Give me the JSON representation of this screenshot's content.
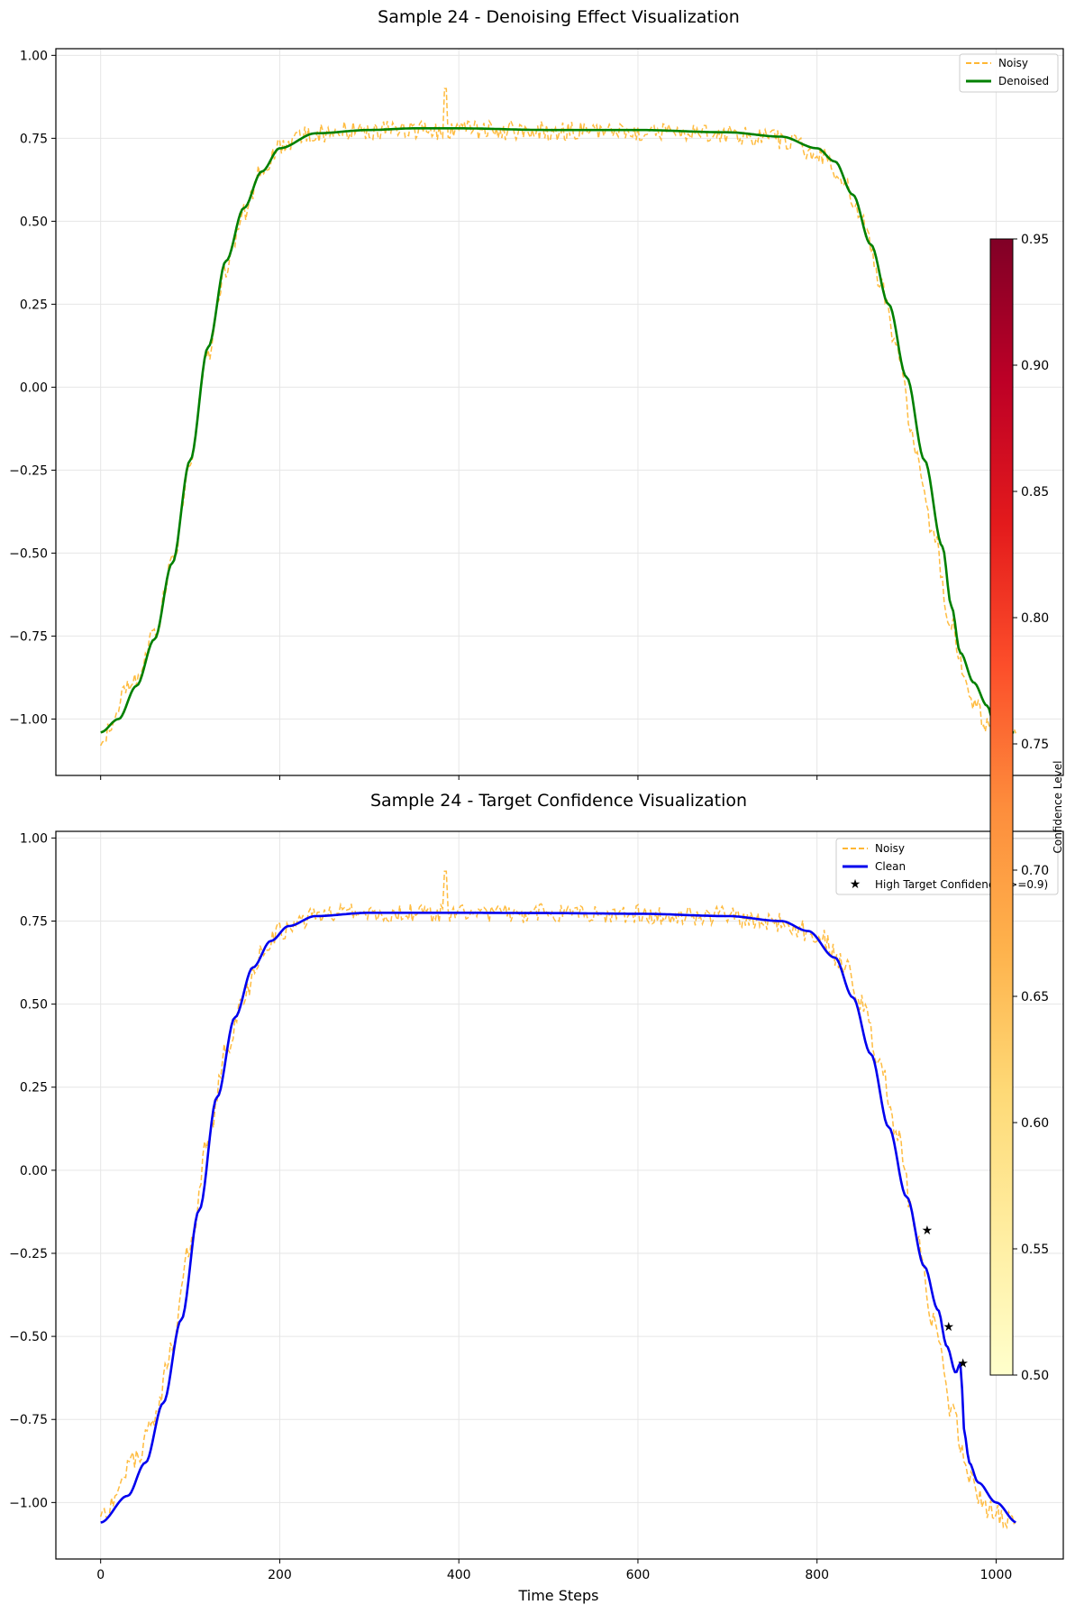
{
  "chart_data": [
    {
      "type": "line",
      "title": "Sample 24 - Denoising Effect Visualization",
      "xlabel": "",
      "ylabel": "",
      "xlim": [
        -50,
        1075
      ],
      "ylim": [
        -1.17,
        1.02
      ],
      "xticks": [
        0,
        200,
        400,
        600,
        800,
        1000
      ],
      "show_xtick_labels": false,
      "yticks": [
        -1.0,
        -0.75,
        -0.5,
        -0.25,
        0.0,
        0.25,
        0.5,
        0.75,
        1.0
      ],
      "ytick_labels": [
        "−1.00",
        "−0.75",
        "−0.50",
        "−0.25",
        "0.00",
        "0.25",
        "0.50",
        "0.75",
        "1.00"
      ],
      "grid": true,
      "legend_position": "top-right",
      "series": [
        {
          "name": "Noisy",
          "style": "dashed",
          "color": "#ffa500",
          "noisy": true,
          "x": [
            0,
            40,
            60,
            80,
            100,
            120,
            140,
            160,
            180,
            200,
            240,
            300,
            400,
            500,
            600,
            700,
            760,
            800,
            830,
            850,
            870,
            890,
            910,
            930,
            950,
            970,
            990,
            1023
          ],
          "y": [
            -1.05,
            -0.87,
            -0.75,
            -0.53,
            -0.23,
            0.1,
            0.36,
            0.53,
            0.65,
            0.72,
            0.765,
            0.775,
            0.775,
            0.772,
            0.77,
            0.765,
            0.745,
            0.71,
            0.62,
            0.5,
            0.33,
            0.1,
            -0.18,
            -0.45,
            -0.72,
            -0.93,
            -1.02,
            -1.06
          ],
          "spike": {
            "x": 385,
            "y": 0.9
          }
        },
        {
          "name": "Denoised",
          "style": "solid",
          "color": "#008000",
          "x": [
            0,
            20,
            40,
            60,
            80,
            100,
            120,
            140,
            160,
            180,
            200,
            240,
            300,
            350,
            380,
            400,
            500,
            600,
            700,
            760,
            800,
            820,
            840,
            860,
            880,
            900,
            920,
            940,
            950,
            960,
            975,
            990,
            1000,
            1020
          ],
          "y": [
            -1.04,
            -1.0,
            -0.9,
            -0.76,
            -0.53,
            -0.22,
            0.12,
            0.38,
            0.54,
            0.65,
            0.72,
            0.765,
            0.775,
            0.78,
            0.78,
            0.78,
            0.775,
            0.775,
            0.768,
            0.755,
            0.72,
            0.68,
            0.58,
            0.43,
            0.25,
            0.03,
            -0.22,
            -0.48,
            -0.66,
            -0.8,
            -0.89,
            -0.96,
            -1.04,
            -1.04
          ]
        }
      ]
    },
    {
      "type": "line",
      "title": "Sample 24 - Target Confidence Visualization",
      "xlabel": "Time Steps",
      "ylabel": "",
      "xlim": [
        -50,
        1075
      ],
      "ylim": [
        -1.17,
        1.02
      ],
      "xticks": [
        0,
        200,
        400,
        600,
        800,
        1000
      ],
      "xtick_labels": [
        "0",
        "200",
        "400",
        "600",
        "800",
        "1000"
      ],
      "yticks": [
        -1.0,
        -0.75,
        -0.5,
        -0.25,
        0.0,
        0.25,
        0.5,
        0.75,
        1.0
      ],
      "ytick_labels": [
        "−1.00",
        "−0.75",
        "−0.50",
        "−0.25",
        "0.00",
        "0.25",
        "0.50",
        "0.75",
        "1.00"
      ],
      "grid": true,
      "legend_position": "top-right",
      "series": [
        {
          "name": "Noisy",
          "style": "dashed",
          "color": "#ffa500",
          "noisy": true,
          "x": [
            0,
            40,
            60,
            80,
            100,
            120,
            140,
            160,
            180,
            200,
            240,
            300,
            400,
            500,
            600,
            700,
            760,
            800,
            830,
            850,
            870,
            890,
            910,
            930,
            950,
            970,
            990,
            1023
          ],
          "y": [
            -1.05,
            -0.87,
            -0.75,
            -0.53,
            -0.23,
            0.1,
            0.36,
            0.53,
            0.65,
            0.72,
            0.765,
            0.775,
            0.775,
            0.772,
            0.77,
            0.765,
            0.745,
            0.71,
            0.62,
            0.5,
            0.33,
            0.1,
            -0.18,
            -0.45,
            -0.72,
            -0.93,
            -1.02,
            -1.06
          ],
          "spike": {
            "x": 385,
            "y": 0.9
          }
        },
        {
          "name": "Clean",
          "style": "solid",
          "color": "#0000ee",
          "x": [
            0,
            30,
            50,
            70,
            90,
            110,
            130,
            150,
            170,
            190,
            210,
            240,
            300,
            400,
            500,
            600,
            700,
            760,
            790,
            820,
            840,
            860,
            880,
            900,
            920,
            935,
            945,
            955,
            960,
            965,
            970,
            980,
            1000,
            1023
          ],
          "y": [
            -1.06,
            -0.98,
            -0.88,
            -0.7,
            -0.45,
            -0.12,
            0.22,
            0.46,
            0.61,
            0.69,
            0.735,
            0.765,
            0.775,
            0.775,
            0.774,
            0.772,
            0.765,
            0.75,
            0.72,
            0.64,
            0.52,
            0.35,
            0.13,
            -0.08,
            -0.29,
            -0.42,
            -0.53,
            -0.61,
            -0.58,
            -0.8,
            -0.88,
            -0.94,
            -1.0,
            -1.06
          ]
        },
        {
          "name": "High Target Confidence (>=0.9)",
          "type": "scatter",
          "marker": "star",
          "color": "#000000",
          "x": [
            923,
            947,
            963
          ],
          "y": [
            -0.18,
            -0.47,
            -0.58
          ]
        }
      ],
      "legend_labels": [
        "Noisy",
        "Clean",
        "High Target Confidence (>=0.9)"
      ]
    }
  ],
  "colorbar": {
    "label": "Confidence Level",
    "min": 0.5,
    "max": 0.95,
    "ticks": [
      0.5,
      0.55,
      0.6,
      0.65,
      0.7,
      0.75,
      0.8,
      0.85,
      0.9,
      0.95
    ],
    "tick_labels": [
      "0.50",
      "0.55",
      "0.60",
      "0.65",
      "0.70",
      "0.75",
      "0.80",
      "0.85",
      "0.90",
      "0.95"
    ],
    "colormap": "YlOrRd",
    "colors": [
      "#ffffcc",
      "#ffeda0",
      "#fed976",
      "#feb24c",
      "#fd8d3c",
      "#fc4e2a",
      "#e31a1c",
      "#bd0026",
      "#800026"
    ]
  }
}
